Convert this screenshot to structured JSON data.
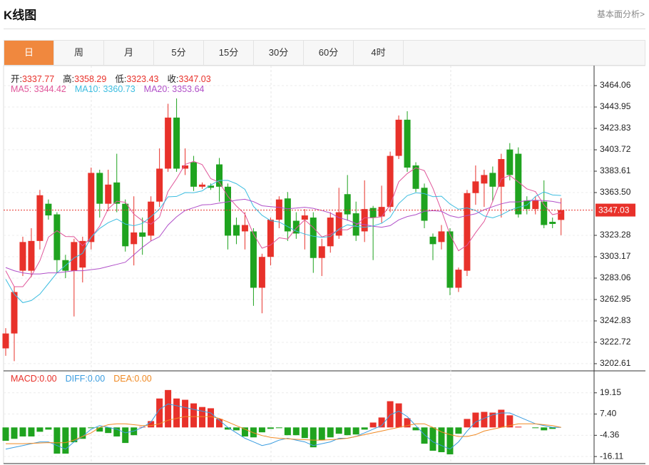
{
  "header": {
    "title": "K线图",
    "link": "基本面分析>"
  },
  "tabs": [
    "日",
    "周",
    "月",
    "5分",
    "15分",
    "30分",
    "60分",
    "4时"
  ],
  "active_tab": 0,
  "chart_data": [
    {
      "type": "candlestick",
      "ohlc_labels": {
        "open": "开:",
        "high": "高:",
        "low": "低:",
        "close": "收:"
      },
      "open": [
        3217,
        3231,
        3290,
        3290,
        3318,
        3353,
        3343,
        3300,
        3290,
        3293,
        3317,
        3382,
        3353,
        3373,
        3353,
        3315,
        3326,
        3323,
        3355,
        3386,
        3434,
        3386,
        3392,
        3369,
        3370,
        3390,
        3369,
        3333,
        3327,
        3327,
        3274,
        3303,
        3338,
        3358,
        3337,
        3338,
        3340,
        3302,
        3313,
        3323,
        3362,
        3344,
        3327,
        3349,
        3341,
        3350,
        3398,
        3432,
        3389,
        3368,
        3322,
        3317,
        3327,
        3274,
        3290,
        3363,
        3372,
        3382,
        3369,
        3404,
        3400,
        3356,
        3348,
        3355,
        3336,
        3337.77
      ],
      "high": [
        3236,
        3275,
        3322,
        3330,
        3366,
        3357,
        3345,
        3305,
        3320,
        3322,
        3387,
        3385,
        3385,
        3400,
        3357,
        3360,
        3340,
        3360,
        3405,
        3447,
        3452,
        3405,
        3398,
        3373,
        3372,
        3396,
        3372,
        3340,
        3345,
        3330,
        3306,
        3340,
        3360,
        3364,
        3345,
        3348,
        3345,
        3320,
        3345,
        3368,
        3380,
        3355,
        3375,
        3351,
        3370,
        3402,
        3436,
        3440,
        3392,
        3372,
        3325,
        3333,
        3330,
        3293,
        3366,
        3389,
        3385,
        3388,
        3400,
        3410,
        3406,
        3360,
        3360,
        3375,
        3340,
        3358.29
      ],
      "low": [
        3210,
        3205,
        3285,
        3284,
        3310,
        3338,
        3288,
        3283,
        3247,
        3279,
        3310,
        3340,
        3346,
        3345,
        3308,
        3295,
        3305,
        3318,
        3350,
        3383,
        3383,
        3380,
        3365,
        3367,
        3366,
        3355,
        3310,
        3315,
        3310,
        3257,
        3250,
        3295,
        3330,
        3318,
        3320,
        3310,
        3288,
        3285,
        3307,
        3320,
        3337,
        3318,
        3317,
        3300,
        3335,
        3345,
        3395,
        3383,
        3364,
        3330,
        3300,
        3310,
        3267,
        3270,
        3285,
        3352,
        3350,
        3355,
        3340,
        3375,
        3340,
        3343,
        3343,
        3330,
        3330,
        3323.43
      ],
      "close": [
        3231,
        3270,
        3317,
        3318,
        3361,
        3342,
        3300,
        3290,
        3317,
        3318,
        3382,
        3353,
        3371,
        3353,
        3313,
        3326,
        3322,
        3355,
        3386,
        3434,
        3386,
        3389,
        3369,
        3371,
        3368,
        3369,
        3323,
        3323,
        3333,
        3274,
        3303,
        3338,
        3357,
        3327,
        3325,
        3342,
        3302,
        3313,
        3340,
        3345,
        3343,
        3323,
        3348,
        3340,
        3350,
        3398,
        3432,
        3387,
        3367,
        3337,
        3315,
        3327,
        3274,
        3291,
        3363,
        3374,
        3380,
        3369,
        3395,
        3380,
        3343,
        3348,
        3356,
        3333,
        3334,
        3347.03
      ],
      "up_color": "#e8312a",
      "down_color": "#1fa31f",
      "series": [
        {
          "name": "MA5:",
          "color": "#e0569a",
          "values": [
            3290,
            3275,
            3275,
            3285,
            3299.4,
            3321.6,
            3327.6,
            3322.2,
            3322,
            3313.4,
            3321.4,
            3332,
            3348.2,
            3355.4,
            3354.4,
            3343.2,
            3337,
            3333.8,
            3340.4,
            3364.6,
            3376.6,
            3390,
            3392.8,
            3389.8,
            3376.6,
            3373.2,
            3360,
            3350.8,
            3343.2,
            3324.4,
            3311.2,
            3314.2,
            3321,
            3319.8,
            3330,
            3337.8,
            3330.6,
            3321.8,
            3324.4,
            3328.4,
            3328.6,
            3332.8,
            3339.8,
            3339.8,
            3340.8,
            3351.8,
            3373.6,
            3381.4,
            3386.8,
            3384.2,
            3367.6,
            3346.6,
            3324,
            3308.8,
            3314,
            3325.8,
            3336.4,
            3355.4,
            3376.2,
            3379.6,
            3373.4,
            3367,
            3364.4,
            3352,
            3342.8,
            3344.42
          ]
        },
        {
          "name": "MA10:",
          "color": "#3dbde0",
          "values": [
            3282,
            3268,
            3260,
            3262,
            3268,
            3278,
            3288,
            3295,
            3302,
            3306.4,
            3321.5,
            3329.8,
            3335.2,
            3338.7,
            3333.9,
            3332.3,
            3334.5,
            3341,
            3347.9,
            3359.5,
            3359.9,
            3363.5,
            3363.3,
            3365.1,
            3370.6,
            3374.9,
            3375,
            3371.8,
            3366.5,
            3350.5,
            3342.2,
            3337.1,
            3335.9,
            3331.5,
            3327.2,
            3324.5,
            3322.4,
            3321.4,
            3322.1,
            3329.2,
            3333.2,
            3331.7,
            3330.8,
            3332.1,
            3334.6,
            3340.2,
            3353.2,
            3360.6,
            3363.3,
            3362.5,
            3359.7,
            3360.1,
            3352.7,
            3347.8,
            3349.1,
            3346.7,
            3341.5,
            3339.7,
            3342.5,
            3346.8,
            3349.6,
            3351.7,
            3359.9,
            3364.1,
            3361.2,
            3360.73
          ]
        },
        {
          "name": "MA20:",
          "color": "#b04fc8",
          "values": [
            3293,
            3290,
            3288,
            3287,
            3287,
            3288,
            3288,
            3289,
            3290,
            3290,
            3291,
            3292,
            3294,
            3296,
            3298,
            3305,
            3312,
            3318,
            3322,
            3333,
            3340.7,
            3346.7,
            3349.3,
            3351.9,
            3352.3,
            3353.6,
            3354.8,
            3356.4,
            3357.2,
            3355,
            3351.1,
            3350.3,
            3349.6,
            3348.3,
            3348.9,
            3349.7,
            3348.7,
            3346.6,
            3344.3,
            3339.9,
            3337.7,
            3334.4,
            3333.4,
            3331.8,
            3330.9,
            3332.4,
            3337.8,
            3341,
            3342.7,
            3345.9,
            3346.5,
            3345.9,
            3341.8,
            3340,
            3341.9,
            3343.5,
            3347.4,
            3350.2,
            3352.9,
            3354.7,
            3354.7,
            3355.9,
            3356.3,
            3356,
            3355.2,
            3353.64
          ]
        }
      ],
      "ylim": [
        3197.2,
        3482.2
      ],
      "yticks": [
        3464.06,
        3443.95,
        3423.83,
        3403.72,
        3383.61,
        {
          "value": 3363.5,
          "label": "3363.50"
        },
        3323.28,
        3303.17,
        3283.06,
        3262.95,
        3242.83,
        3222.72,
        3202.61
      ],
      "grid": true
    },
    {
      "type": "macd",
      "series": [
        {
          "name": "MACD:",
          "kind": "bar",
          "color": "#e8312a",
          "down_color": "#1fa31f",
          "value_label": "0.00",
          "values": [
            -7.4,
            -6.3,
            -5,
            -5,
            -2.4,
            -1.2,
            -14.5,
            -14.5,
            -8.2,
            -6.3,
            -0.4,
            -2.3,
            -3.1,
            -5,
            -8.6,
            -4.3,
            0.3,
            3.5,
            16,
            20.7,
            16,
            15.3,
            13.3,
            11.3,
            10.6,
            4.7,
            -1.2,
            -1.6,
            -5,
            -5.5,
            -2.7,
            -0.8,
            -0.4,
            -4.3,
            -4.3,
            -5.9,
            -11,
            -7,
            -5.5,
            -3.5,
            -4.3,
            -3.9,
            -1.2,
            2.7,
            5.5,
            14.5,
            13.3,
            5.1,
            -1.6,
            -9,
            -12.9,
            -13.7,
            -14.9,
            -3.5,
            4.7,
            8.2,
            8.6,
            8.2,
            9.8,
            6.7,
            0.4,
            0,
            -0.4,
            -1.6,
            -0.8,
            0
          ]
        },
        {
          "name": "DIFF:",
          "kind": "line",
          "color": "#3b9de0",
          "value_label": "0.00",
          "values": [
            -12,
            -11,
            -10,
            -9,
            -8,
            -8,
            -10,
            -12,
            -8,
            -5,
            -1,
            1,
            0,
            -1,
            -3,
            -2,
            0,
            3,
            10,
            13,
            12,
            11,
            10,
            9,
            8,
            4,
            0,
            -3,
            -6,
            -8,
            -10,
            -9,
            -7,
            -6,
            -7,
            -8,
            -10,
            -9,
            -8,
            -6,
            -6,
            -5,
            -3,
            -1,
            1,
            7,
            9,
            6,
            1,
            -4,
            -8,
            -10,
            -12,
            -8,
            -2,
            3,
            5,
            7,
            8,
            8,
            6,
            4,
            2,
            1,
            0,
            0
          ]
        },
        {
          "name": "DEA:",
          "kind": "line",
          "color": "#f08a24",
          "value_label": "0.00",
          "values": [
            -9,
            -9,
            -9,
            -8.8,
            -8.6,
            -8.4,
            -8.5,
            -8.4,
            -7,
            -5,
            -3,
            0,
            1.5,
            2,
            2,
            1.5,
            1,
            1,
            2,
            4,
            5,
            6,
            6,
            6,
            6,
            5,
            3,
            1,
            -1,
            -3,
            -4.5,
            -5.5,
            -6,
            -6.3,
            -6.6,
            -6.8,
            -7,
            -7,
            -6.8,
            -6.5,
            -6,
            -5,
            -4,
            -3,
            -2,
            -1,
            0,
            1,
            2,
            2,
            0,
            -2.5,
            -4,
            -5,
            -5,
            -4,
            -2,
            -1,
            0,
            1,
            2,
            2,
            2,
            1.5,
            1,
            0
          ]
        }
      ],
      "ylim": [
        -20,
        30.9
      ],
      "yticks": [
        19.15,
        {
          "value": 7.4,
          "label": "7.40"
        },
        -4.36,
        -16.11
      ],
      "grid": true
    }
  ]
}
